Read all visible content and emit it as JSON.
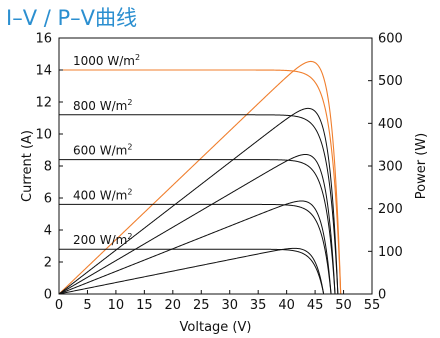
{
  "chart_data": {
    "type": "line",
    "title": "I–V / P–V曲线",
    "xlabel": "Voltage (V)",
    "ylabel": "Current (A)",
    "y2label": "Power (W)",
    "xlim": [
      0,
      55
    ],
    "ylim": [
      0,
      16
    ],
    "y2lim": [
      0,
      600
    ],
    "xticks": [
      0,
      5,
      10,
      15,
      20,
      25,
      30,
      35,
      40,
      45,
      50,
      55
    ],
    "yticks": [
      0,
      2,
      4,
      6,
      8,
      10,
      12,
      14,
      16
    ],
    "y2ticks": [
      0,
      100,
      200,
      300,
      400,
      500,
      600
    ],
    "irradiance_labels": [
      {
        "value": "1000 W/m",
        "sup": "2",
        "current_level": 14.0
      },
      {
        "value": "800 W/m",
        "sup": "2",
        "current_level": 11.2
      },
      {
        "value": "600 W/m",
        "sup": "2",
        "current_level": 8.4
      },
      {
        "value": "400 W/m",
        "sup": "2",
        "current_level": 5.6
      },
      {
        "value": "200 W/m",
        "sup": "2",
        "current_level": 2.8
      }
    ],
    "series": [
      {
        "irradiance": 1000,
        "isc": 14.0,
        "voc": 49.5,
        "peak_power": 545,
        "vmp": 41.5,
        "color": "#f07f2e"
      },
      {
        "irradiance": 800,
        "isc": 11.2,
        "voc": 49.0,
        "peak_power": 435,
        "vmp": 41.3,
        "color": "#111111"
      },
      {
        "irradiance": 600,
        "isc": 8.4,
        "voc": 48.5,
        "peak_power": 327,
        "vmp": 41.0,
        "color": "#111111"
      },
      {
        "irradiance": 400,
        "isc": 5.6,
        "voc": 47.8,
        "peak_power": 218,
        "vmp": 40.8,
        "color": "#111111"
      },
      {
        "irradiance": 200,
        "isc": 2.8,
        "voc": 46.5,
        "peak_power": 107,
        "vmp": 40.5,
        "color": "#111111"
      }
    ],
    "grid": false,
    "colors": {
      "title": "#2b8fd0",
      "highlight": "#f07f2e",
      "curves": "#111111"
    }
  }
}
